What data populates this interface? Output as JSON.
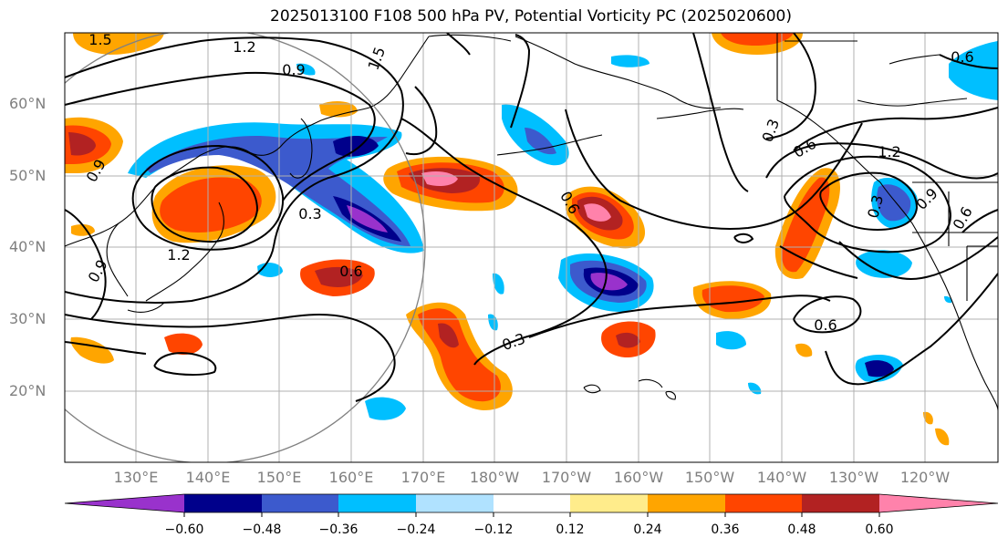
{
  "title": "2025013100 F108 500 hPa PV, Potential Vorticity PC (2025020600)",
  "lat_labels": [
    "60°N",
    "50°N",
    "40°N",
    "30°N",
    "20°N"
  ],
  "lon_labels": [
    "130°E",
    "140°E",
    "150°E",
    "160°E",
    "170°E",
    "180°W",
    "170°W",
    "160°W",
    "150°W",
    "140°W",
    "130°W",
    "120°W"
  ],
  "contour_labels": [
    "1.5",
    "1.2",
    "1.5",
    "0.9",
    "0.3",
    "0.6",
    "1.2",
    "0.9",
    "0.9",
    "0.3",
    "1.2",
    "0.9",
    "0.6",
    "0.6",
    "0.3",
    "0.6",
    "0.6",
    "0.6",
    "0.3"
  ],
  "colorbar": {
    "colors": [
      "#9932cc",
      "#00008b",
      "#3c5acd",
      "#00bfff",
      "#b0e2ff",
      "#ffffff",
      "#ffec8b",
      "#ffa500",
      "#ff4500",
      "#b22222",
      "#ff82ab"
    ],
    "tick_labels": [
      "−0.60",
      "−0.48",
      "−0.36",
      "−0.24",
      "−0.12",
      "0.12",
      "0.24",
      "0.36",
      "0.48",
      "0.60"
    ]
  }
}
